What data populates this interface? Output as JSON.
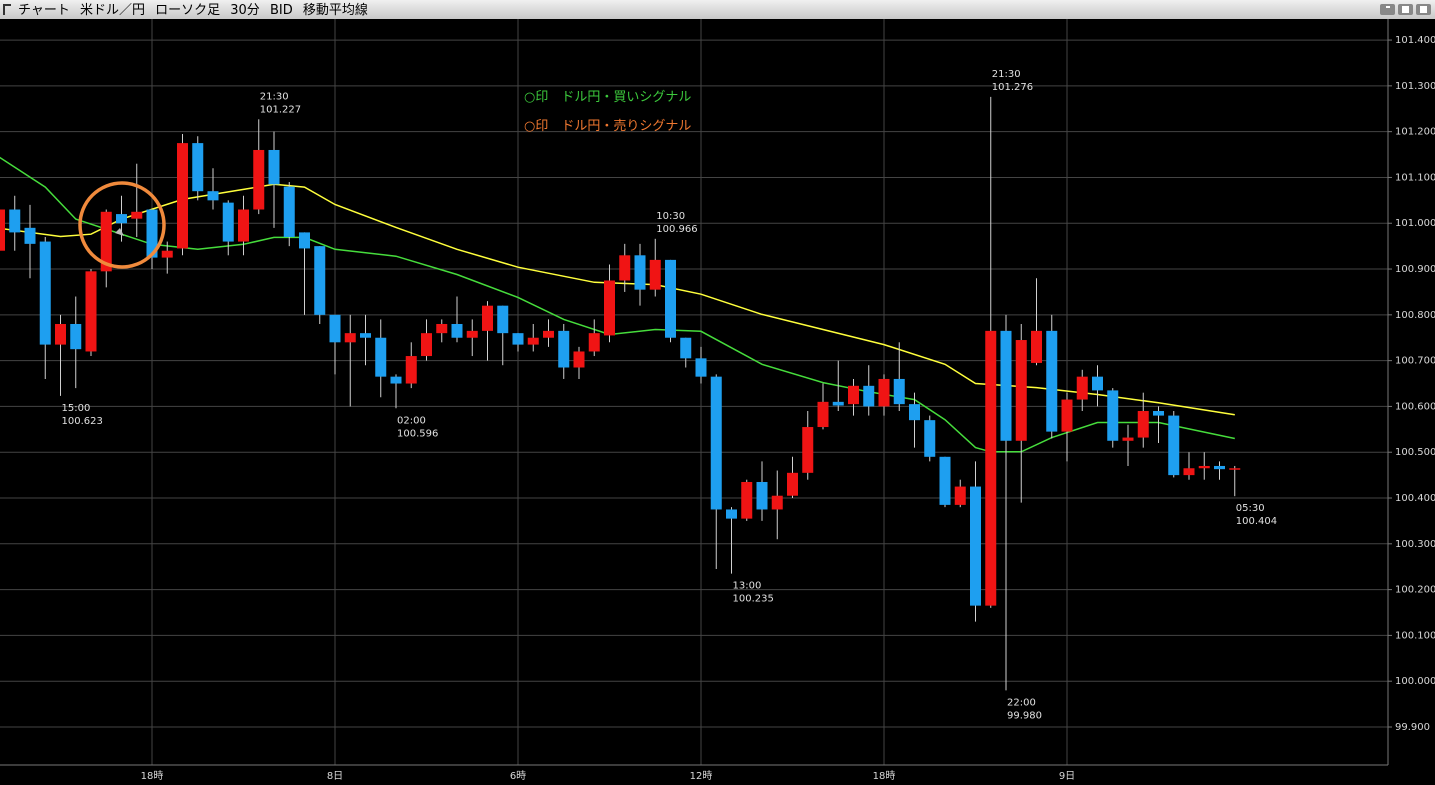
{
  "chart_data": {
    "type": "candlestick",
    "title": "チャート 米ドル／円 ローソク足 30分 BID 移動平均線",
    "legend": [
      {
        "text": "○印　ドル円・買いシグナル",
        "color": "#3cc83c"
      },
      {
        "text": "○印　ドル円・売りシグナル",
        "color": "#f07830"
      }
    ],
    "categories": [
      null,
      null,
      null,
      null,
      null,
      null,
      null,
      null,
      null,
      null,
      "18時",
      null,
      null,
      null,
      null,
      null,
      null,
      null,
      null,
      null,
      null,
      null,
      "8日",
      null,
      null,
      null,
      null,
      null,
      null,
      null,
      null,
      null,
      null,
      null,
      "6時",
      null,
      null,
      null,
      null,
      null,
      null,
      null,
      null,
      null,
      null,
      null,
      "12時",
      null,
      null,
      null,
      null,
      null,
      null,
      null,
      null,
      null,
      null,
      null,
      "18時",
      null,
      null,
      null,
      null,
      null,
      null,
      null,
      null,
      null,
      null,
      null,
      "9日",
      null,
      null,
      null,
      null,
      null,
      null,
      null,
      null,
      null,
      null,
      null
    ],
    "open": [
      100.94,
      101.03,
      100.99,
      100.96,
      100.735,
      100.78,
      100.72,
      100.895,
      101.02,
      101.01,
      101.03,
      100.925,
      100.945,
      101.175,
      101.07,
      101.045,
      100.96,
      101.03,
      101.16,
      101.08,
      100.98,
      100.95,
      100.8,
      100.74,
      100.76,
      100.75,
      100.665,
      100.65,
      100.71,
      100.76,
      100.78,
      100.75,
      100.765,
      100.82,
      100.76,
      100.735,
      100.75,
      100.765,
      100.685,
      100.72,
      100.755,
      100.875,
      100.93,
      100.855,
      100.92,
      100.75,
      100.705,
      100.665,
      100.375,
      100.355,
      100.435,
      100.375,
      100.405,
      100.455,
      100.555,
      100.61,
      100.605,
      100.645,
      100.6,
      100.66,
      100.605,
      100.57,
      100.49,
      100.385,
      100.425,
      100.165,
      100.765,
      100.525,
      100.695,
      100.765,
      100.545,
      100.615,
      100.665,
      100.635,
      100.525,
      100.532,
      100.59,
      100.58,
      100.45,
      100.465,
      100.47,
      100.463
    ],
    "high": [
      101.06,
      101.06,
      101.04,
      100.97,
      100.8,
      100.84,
      100.9,
      101.03,
      101.06,
      101.13,
      101.03,
      100.96,
      101.195,
      101.19,
      101.12,
      101.05,
      101.06,
      101.227,
      101.2,
      101.09,
      100.98,
      100.95,
      100.8,
      100.8,
      100.8,
      100.79,
      100.67,
      100.74,
      100.79,
      100.79,
      100.84,
      100.79,
      100.83,
      100.82,
      100.76,
      100.78,
      100.79,
      100.78,
      100.73,
      100.79,
      100.91,
      100.955,
      100.955,
      100.966,
      100.92,
      100.75,
      100.73,
      100.67,
      100.38,
      100.44,
      100.48,
      100.46,
      100.49,
      100.59,
      100.65,
      100.7,
      100.66,
      100.69,
      100.67,
      100.74,
      100.63,
      100.58,
      100.49,
      100.44,
      100.48,
      101.276,
      100.8,
      100.78,
      100.88,
      100.8,
      100.63,
      100.68,
      100.69,
      100.64,
      100.56,
      100.63,
      100.6,
      100.59,
      100.5,
      100.5,
      100.48,
      100.47
    ],
    "low": [
      100.92,
      100.94,
      100.88,
      100.66,
      100.623,
      100.64,
      100.71,
      100.86,
      100.96,
      100.97,
      100.9,
      100.89,
      100.93,
      101.05,
      101.03,
      100.93,
      100.93,
      101.02,
      100.99,
      100.95,
      100.8,
      100.78,
      100.67,
      100.6,
      100.69,
      100.62,
      100.596,
      100.64,
      100.7,
      100.74,
      100.74,
      100.71,
      100.7,
      100.69,
      100.72,
      100.72,
      100.73,
      100.66,
      100.66,
      100.71,
      100.74,
      100.85,
      100.82,
      100.84,
      100.74,
      100.685,
      100.65,
      100.245,
      100.235,
      100.35,
      100.35,
      100.31,
      100.4,
      100.44,
      100.55,
      100.59,
      100.58,
      100.58,
      100.58,
      100.59,
      100.51,
      100.48,
      100.38,
      100.38,
      100.13,
      100.16,
      99.98,
      100.39,
      100.69,
      100.53,
      100.48,
      100.59,
      100.6,
      100.51,
      100.47,
      100.51,
      100.52,
      100.445,
      100.44,
      100.44,
      100.44,
      100.404
    ],
    "close": [
      101.03,
      100.98,
      100.955,
      100.735,
      100.78,
      100.725,
      100.895,
      101.025,
      101.0,
      101.025,
      100.925,
      100.94,
      101.175,
      101.07,
      101.05,
      100.96,
      101.03,
      101.16,
      101.085,
      100.97,
      100.945,
      100.8,
      100.74,
      100.76,
      100.75,
      100.665,
      100.65,
      100.71,
      100.76,
      100.78,
      100.75,
      100.765,
      100.82,
      100.76,
      100.735,
      100.75,
      100.765,
      100.685,
      100.72,
      100.76,
      100.875,
      100.93,
      100.855,
      100.92,
      100.75,
      100.705,
      100.665,
      100.375,
      100.355,
      100.435,
      100.375,
      100.405,
      100.455,
      100.555,
      100.61,
      100.602,
      100.645,
      100.6,
      100.66,
      100.605,
      100.57,
      100.49,
      100.385,
      100.425,
      100.165,
      100.765,
      100.525,
      100.745,
      100.765,
      100.545,
      100.615,
      100.665,
      100.635,
      100.525,
      100.532,
      100.59,
      100.58,
      100.45,
      100.465,
      100.47,
      100.463,
      100.465
    ],
    "up_color": "#f01414",
    "down_color": "#1e9ff0",
    "lines": [
      {
        "color": "#ffff3c",
        "x": [
          0,
          4,
          6,
          8,
          12,
          16,
          18,
          20,
          22,
          26,
          30,
          34,
          39,
          43,
          46,
          50,
          54,
          58,
          62,
          64,
          68,
          72,
          76,
          81
        ],
        "values": [
          100.989,
          100.971,
          100.976,
          101.009,
          101.052,
          101.074,
          101.085,
          101.079,
          101.041,
          100.991,
          100.943,
          100.904,
          100.871,
          100.866,
          100.845,
          100.801,
          100.768,
          100.735,
          100.692,
          100.65,
          100.641,
          100.626,
          100.608,
          100.582
        ]
      },
      {
        "color": "#46dc3c",
        "x": [
          0,
          3,
          5,
          8,
          10,
          13,
          16,
          18,
          20,
          22,
          26,
          30,
          34,
          37,
          40,
          43,
          46,
          50,
          54,
          57,
          60,
          62,
          64,
          65,
          67,
          69,
          72,
          76,
          81
        ],
        "values": [
          101.144,
          101.079,
          101.009,
          100.976,
          100.954,
          100.943,
          100.954,
          100.969,
          100.969,
          100.943,
          100.928,
          100.888,
          100.838,
          100.79,
          100.757,
          100.768,
          100.764,
          100.692,
          100.652,
          100.632,
          100.615,
          100.571,
          100.51,
          100.501,
          100.501,
          100.532,
          100.565,
          100.565,
          100.53
        ]
      }
    ],
    "annotations": [
      {
        "x": 4,
        "time": "15:00",
        "value": 100.623
      },
      {
        "x": 17,
        "time": "21:30",
        "value": 101.227
      },
      {
        "x": 26,
        "time": "02:00",
        "value": 100.596
      },
      {
        "x": 43,
        "time": "10:30",
        "value": 100.966
      },
      {
        "x": 48,
        "time": "13:00",
        "value": 100.235
      },
      {
        "x": 65,
        "time": "21:30",
        "value": 101.276
      },
      {
        "x": 66,
        "time": "22:00",
        "value": 99.98,
        "label": "99.980"
      },
      {
        "x": 81,
        "time": "05:30",
        "value": 100.404
      }
    ],
    "ylim": [
      99.817,
      101.446
    ],
    "yticks": [
      {
        "value": 99.9,
        "label": "99.900"
      },
      {
        "value": 100.0,
        "label": "100.000"
      },
      {
        "value": 100.1,
        "label": "100.100"
      },
      {
        "value": 100.2,
        "label": "100.200"
      },
      {
        "value": 100.3,
        "label": "100.300"
      },
      {
        "value": 100.4,
        "label": "100.400"
      },
      {
        "value": 100.5,
        "label": "100.500"
      },
      {
        "value": 100.6,
        "label": "100.600"
      },
      {
        "value": 100.7,
        "label": "100.700"
      },
      {
        "value": 100.8,
        "label": "100.800"
      },
      {
        "value": 100.9,
        "label": "100.900"
      },
      {
        "value": 101.0,
        "label": "101.000"
      },
      {
        "value": 101.1,
        "label": "101.100"
      },
      {
        "value": 101.2,
        "label": "101.200"
      },
      {
        "value": 101.3,
        "label": "101.300"
      },
      {
        "value": 101.4,
        "label": "101.400"
      }
    ],
    "grid": true
  }
}
